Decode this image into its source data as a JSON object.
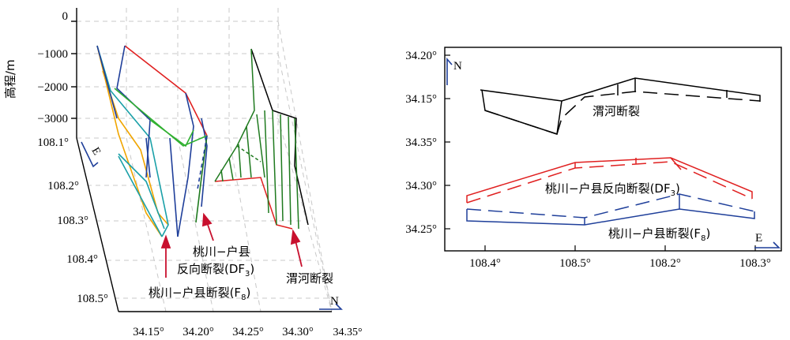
{
  "left_panel": {
    "y_axis_title": "高程/m",
    "elevation_ticks": [
      "0",
      "−1000",
      "−2000",
      "−3000"
    ],
    "east_ticks": [
      "108.1°",
      "108.2°",
      "108.3°",
      "108.4°",
      "108.5°"
    ],
    "north_ticks": [
      "34.15°",
      "34.20°",
      "34.25°",
      "34.30°",
      "34.35°"
    ],
    "east_label": "E",
    "north_label": "N",
    "annotations": {
      "df3_line1": "桃川−户县",
      "df3_line2_main": "反向断裂(DF",
      "df3_sub": "3",
      "df3_close": ")",
      "f8_main": "桃川−户县断裂(F",
      "f8_sub": "8",
      "f8_close": ")",
      "weihe": "渭河断裂"
    }
  },
  "right_panel": {
    "y_ticks": [
      "34.20°",
      "34.15°",
      "34.35°",
      "34.30°",
      "34.25°"
    ],
    "x_ticks": [
      "108.4°",
      "108.5°",
      "108.2°",
      "108.3°"
    ],
    "north_label": "N",
    "east_label": "E",
    "weihe_label": "渭河断裂",
    "df3_main": "桃川−户县反向断裂(DF",
    "df3_sub": "3",
    "df3_close": ")",
    "f8_main": "桃川−户县断裂(F",
    "f8_sub": "8",
    "f8_close": ")"
  },
  "colors": {
    "weihe": "#000000",
    "df3": "#e02020",
    "f8": "#1f3f9a",
    "mesh_green": "#1f7a1f",
    "mesh_orange": "#f0a500",
    "mesh_cyan": "#1aa0a8",
    "mesh_lime": "#30b030",
    "arrow": "#c8102e"
  }
}
